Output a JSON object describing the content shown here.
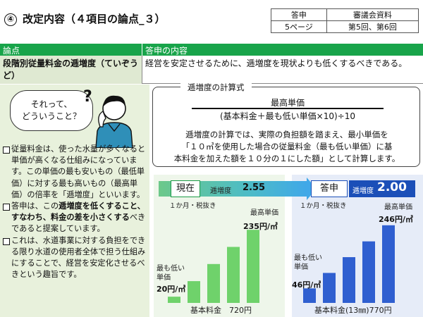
{
  "header": {
    "number": "④",
    "title": "改定内容（４項目の論点_３）"
  },
  "ref_table": {
    "rows": [
      [
        "答申",
        "審議会資料"
      ],
      [
        "5ページ",
        "第5回、第6回"
      ]
    ]
  },
  "issue_table": {
    "col1_header": "論点",
    "col2_header": "答申の内容",
    "issue": "段階別従量料金の逓増度（ていぞうど）",
    "content": "経営を安定させるために、逓増度を現状よりも低くするべきである。"
  },
  "left_panel": {
    "bubble_line1": "それって、",
    "bubble_line2": "どういうこと？",
    "bullets": [
      {
        "parts": [
          {
            "t": "従量料金は、使った水量が多くなると単価が高くなる仕組みになっています。この単価の最も安いもの（最低単価）に対する最も高いもの（最高単価）の倍率を「逓増度」といいます。",
            "b": false
          }
        ]
      },
      {
        "parts": [
          {
            "t": "答申は、この",
            "b": false
          },
          {
            "t": "逓増度を低くすること、すなわち、料金の差を小さくする",
            "b": true
          },
          {
            "t": "べきであると提案しています。",
            "b": false
          }
        ]
      },
      {
        "parts": [
          {
            "t": "これは、水道事業に対する負担をできる限り水道の使用者全体で担う仕組みにすることで、経営を安定化させるべきという趣旨です。",
            "b": false
          }
        ]
      }
    ]
  },
  "formula": {
    "title": "逓増度の計算式",
    "numerator": "最高単価",
    "denominator": "(基本料金＋最も低い単価×10)÷10",
    "desc_line1": "逓増度の計算では、実際の負担額を踏まえ、最小単価を",
    "desc_line2": "「１０㎥を使用した場合の従量料金（最も低い単価）に基",
    "desc_line3": "本料金を加えた額を１０分の１にした額」として計算します。"
  },
  "colors": {
    "green": "#18a44a",
    "light_green": "#dfe9d2",
    "bar_green": "#6fd26b",
    "bar_blue": "#2f5fd0"
  },
  "chart_data": [
    {
      "type": "bar",
      "tag": "現在",
      "index_label": "逓増度",
      "index_value": "2.55",
      "subtitle": "１か月・税抜き",
      "values": [
        20,
        70,
        125,
        180,
        235
      ],
      "min_label": "最も低い単価",
      "min_value": "20円/㎥",
      "max_label": "最高単価",
      "max_value": "235円/㎥",
      "base_label": "基本料金　720円",
      "ylim": [
        0,
        240
      ]
    },
    {
      "type": "bar",
      "tag": "答申",
      "index_label": "逓増度",
      "index_value": "2.00",
      "subtitle": "１か月・税抜き",
      "values": [
        46,
        95,
        145,
        195,
        246
      ],
      "min_label": "最も低い単価",
      "min_value": "46円/㎥",
      "max_label": "最高単価",
      "max_value": "246円/㎥",
      "base_label": "基本料金(13㎜)770円",
      "ylim": [
        0,
        250
      ]
    }
  ]
}
